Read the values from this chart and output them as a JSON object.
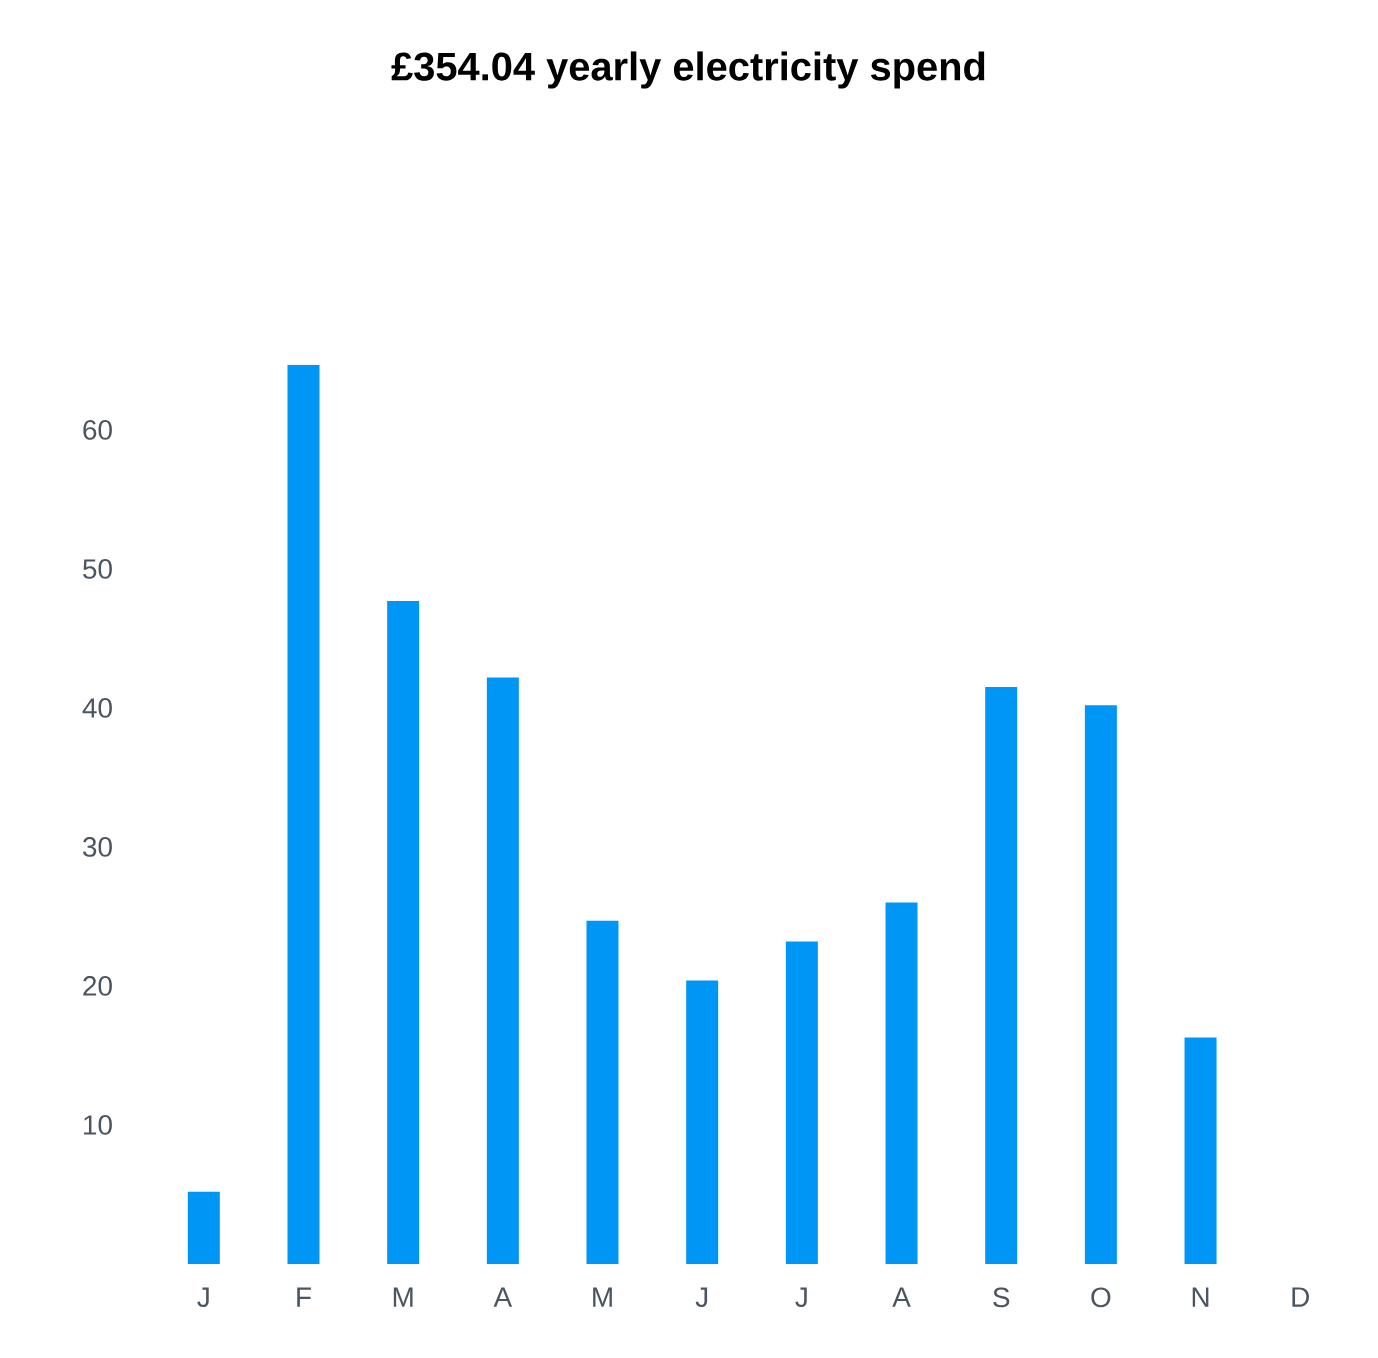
{
  "chart_data": {
    "type": "bar",
    "title": "£354.04 yearly electricity spend",
    "categories": [
      "J",
      "F",
      "M",
      "A",
      "M",
      "J",
      "J",
      "A",
      "S",
      "O",
      "N",
      "D"
    ],
    "values": [
      5.2,
      64.7,
      47.7,
      42.2,
      24.7,
      20.4,
      23.2,
      26.0,
      41.5,
      40.2,
      16.3,
      null
    ],
    "color": "#0096f5",
    "ylim": [
      0,
      64.7
    ],
    "yticks": [
      10,
      20,
      30,
      40,
      50,
      60
    ],
    "grid": false
  }
}
